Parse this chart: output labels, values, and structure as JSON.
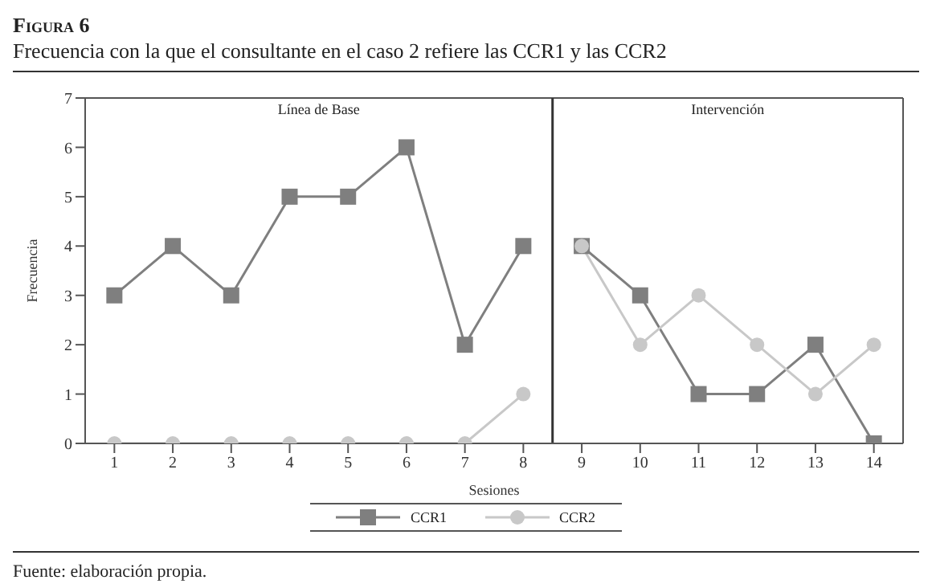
{
  "chart_data": {
    "type": "line",
    "title": "Figura 6",
    "subtitle": "Frecuencia con la que el consultante en el caso 2 refiere las CCR1 y las CCR2",
    "xlabel": "Sesiones",
    "ylabel": "Frecuencia",
    "xlim": [
      0.5,
      14.5
    ],
    "xticks": [
      1,
      2,
      3,
      4,
      5,
      6,
      7,
      8,
      9,
      10,
      11,
      12,
      13,
      14
    ],
    "ylim": [
      0,
      7
    ],
    "yticks": [
      0,
      1,
      2,
      3,
      4,
      5,
      6,
      7
    ],
    "grid": false,
    "legend": "bottom",
    "line_style": "solid",
    "series": [
      {
        "name": "CCR1",
        "color": "#7f7f7f",
        "marker": "square",
        "x": [
          1,
          2,
          3,
          4,
          5,
          6,
          7,
          8
        ],
        "values": [
          3,
          4,
          3,
          5,
          5,
          6,
          2,
          4
        ]
      },
      {
        "name": "CCR2",
        "color": "#c8c8c8",
        "marker": "circle",
        "x": [
          1,
          2,
          3,
          4,
          5,
          6,
          7,
          8
        ],
        "values": [
          0,
          0,
          0,
          0,
          0,
          0,
          0,
          1
        ]
      },
      {
        "color": "#7f7f7f",
        "marker": "square",
        "x": [
          9,
          10,
          11,
          12,
          13,
          14
        ],
        "values": [
          4,
          3,
          1,
          1,
          2,
          0
        ]
      },
      {
        "color": "#c8c8c8",
        "marker": "circle",
        "x": [
          9,
          10,
          11,
          12,
          13,
          14
        ],
        "values": [
          4,
          2,
          3,
          2,
          1,
          2
        ]
      }
    ],
    "ref_lines": [
      {
        "axis": "x",
        "value": 8.5,
        "color": "#333333"
      }
    ],
    "annotations": [
      "Línea de Base",
      "Intervención",
      "Fuente: elaboración propia."
    ]
  }
}
